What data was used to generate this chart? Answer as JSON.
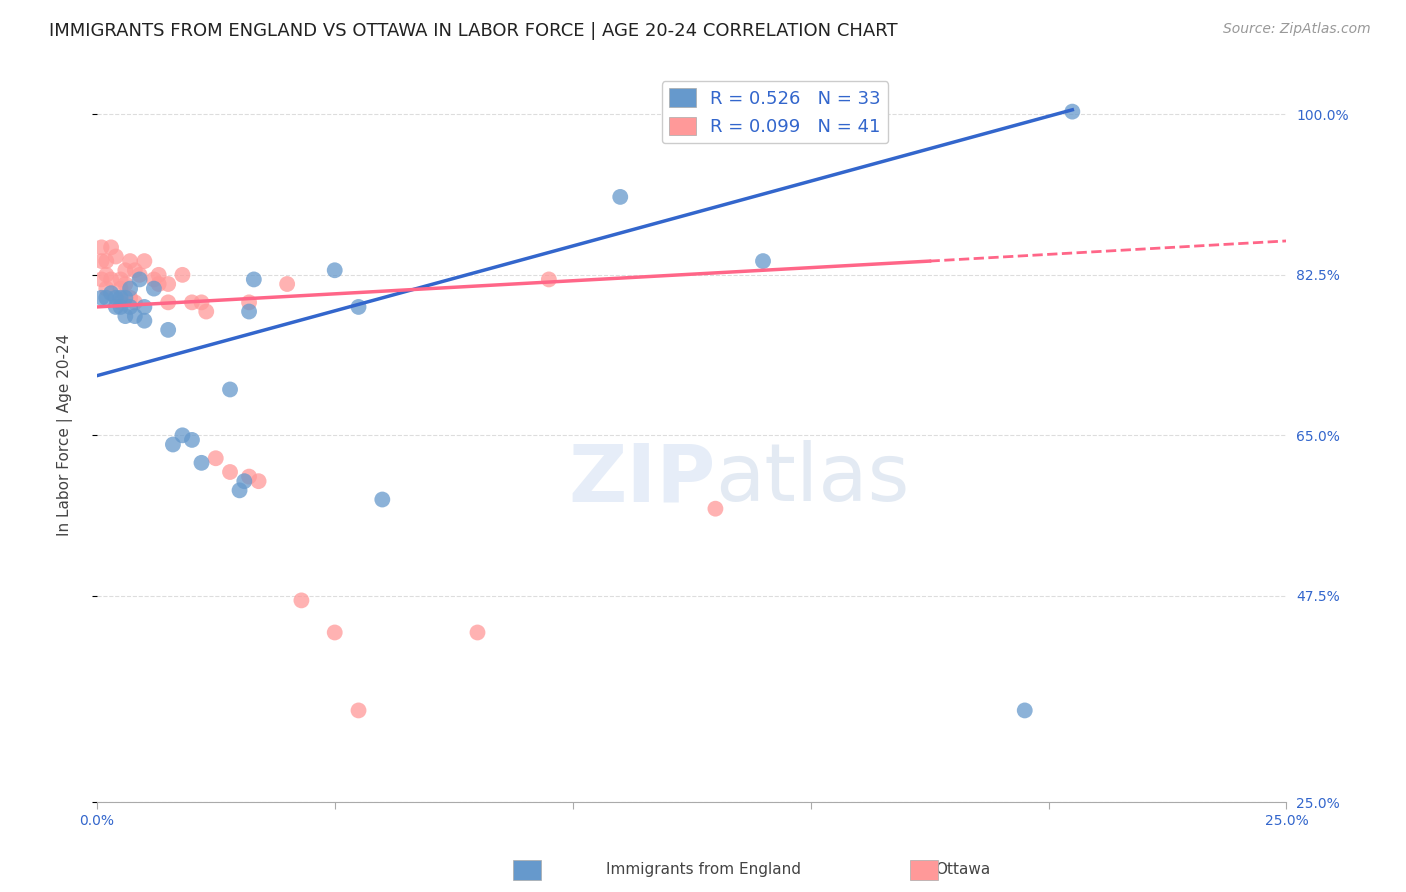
{
  "title": "IMMIGRANTS FROM ENGLAND VS OTTAWA IN LABOR FORCE | AGE 20-24 CORRELATION CHART",
  "source": "Source: ZipAtlas.com",
  "ylabel": "In Labor Force | Age 20-24",
  "xlim": [
    0.0,
    0.25
  ],
  "ylim": [
    0.25,
    1.05
  ],
  "yticks": [
    0.25,
    0.475,
    0.65,
    0.825,
    1.0
  ],
  "ytick_labels": [
    "25.0%",
    "47.5%",
    "65.0%",
    "82.5%",
    "100.0%"
  ],
  "xticks": [
    0.0,
    0.05,
    0.1,
    0.15,
    0.2,
    0.25
  ],
  "xtick_labels": [
    "0.0%",
    "",
    "",
    "",
    "",
    "25.0%"
  ],
  "blue_R": 0.526,
  "blue_N": 33,
  "pink_R": 0.099,
  "pink_N": 41,
  "blue_color": "#6699CC",
  "pink_color": "#FF9999",
  "blue_line_color": "#3366CC",
  "pink_line_color": "#FF6688",
  "watermark_zip": "ZIP",
  "watermark_atlas": "atlas",
  "blue_line_x0": 0.0,
  "blue_line_y0": 0.715,
  "blue_line_x1": 0.205,
  "blue_line_y1": 1.005,
  "pink_line_x0": 0.0,
  "pink_line_y0": 0.79,
  "pink_line_x1": 0.175,
  "pink_line_y1": 0.84,
  "pink_line_dash_x0": 0.175,
  "pink_line_dash_y0": 0.84,
  "pink_line_dash_x1": 0.25,
  "pink_line_dash_y1": 0.862,
  "blue_scatter_x": [
    0.001,
    0.002,
    0.003,
    0.004,
    0.004,
    0.005,
    0.005,
    0.006,
    0.006,
    0.007,
    0.007,
    0.008,
    0.009,
    0.01,
    0.01,
    0.012,
    0.015,
    0.016,
    0.018,
    0.02,
    0.022,
    0.028,
    0.03,
    0.031,
    0.032,
    0.033,
    0.05,
    0.055,
    0.06,
    0.11,
    0.14,
    0.195,
    0.205
  ],
  "blue_scatter_y": [
    0.8,
    0.8,
    0.805,
    0.8,
    0.79,
    0.8,
    0.79,
    0.8,
    0.78,
    0.81,
    0.79,
    0.78,
    0.82,
    0.79,
    0.775,
    0.81,
    0.765,
    0.64,
    0.65,
    0.645,
    0.62,
    0.7,
    0.59,
    0.6,
    0.785,
    0.82,
    0.83,
    0.79,
    0.58,
    0.91,
    0.84,
    0.35,
    1.003
  ],
  "pink_scatter_x": [
    0.001,
    0.001,
    0.001,
    0.002,
    0.002,
    0.002,
    0.003,
    0.003,
    0.004,
    0.005,
    0.005,
    0.005,
    0.006,
    0.006,
    0.007,
    0.007,
    0.008,
    0.008,
    0.009,
    0.01,
    0.012,
    0.013,
    0.013,
    0.015,
    0.015,
    0.018,
    0.02,
    0.022,
    0.023,
    0.025,
    0.028,
    0.032,
    0.032,
    0.034,
    0.04,
    0.043,
    0.05,
    0.055,
    0.08,
    0.095,
    0.13
  ],
  "pink_scatter_y": [
    0.855,
    0.84,
    0.82,
    0.84,
    0.825,
    0.81,
    0.855,
    0.82,
    0.845,
    0.82,
    0.795,
    0.81,
    0.83,
    0.815,
    0.84,
    0.8,
    0.83,
    0.795,
    0.825,
    0.84,
    0.82,
    0.815,
    0.825,
    0.815,
    0.795,
    0.825,
    0.795,
    0.795,
    0.785,
    0.625,
    0.61,
    0.795,
    0.605,
    0.6,
    0.815,
    0.47,
    0.435,
    0.35,
    0.435,
    0.82,
    0.57
  ],
  "grid_color": "#DDDDDD",
  "background_color": "#FFFFFF",
  "title_fontsize": 13,
  "axis_label_fontsize": 11,
  "tick_fontsize": 10,
  "legend_fontsize": 13,
  "source_fontsize": 10
}
